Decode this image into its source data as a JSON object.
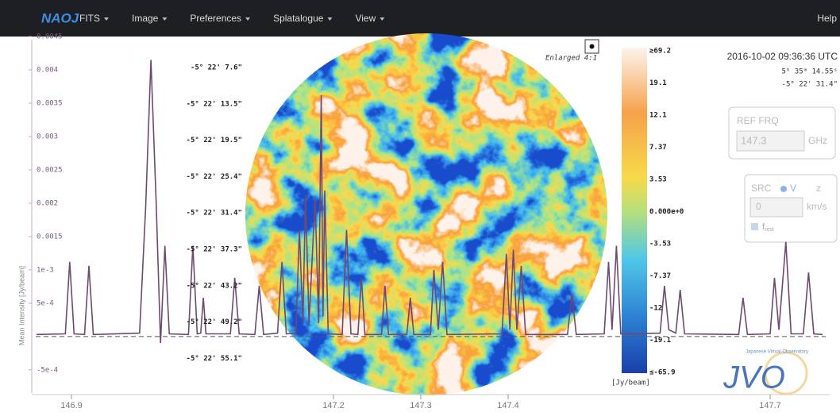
{
  "navbar": {
    "logo": "NAOJ",
    "menus": [
      "FITS",
      "Image",
      "Preferences",
      "Splatalogue",
      "View"
    ],
    "help": "Help"
  },
  "chart_data": {
    "type": "line",
    "y_label": "Mean Intensity [Jy/beam]",
    "color": "#6e4a70",
    "x": [
      146.86,
      146.893,
      146.898,
      146.903,
      146.915,
      146.92,
      146.925,
      146.978,
      146.985,
      146.991,
      146.997,
      147.002,
      147.007,
      147.012,
      147.034,
      147.039,
      147.044,
      147.048,
      147.051,
      147.054,
      147.082,
      147.087,
      147.092,
      147.11,
      147.115,
      147.12,
      147.136,
      147.141,
      147.146,
      147.157,
      147.161,
      147.165,
      147.168,
      147.172,
      147.179,
      147.183,
      147.186,
      147.188,
      147.19,
      147.194,
      147.21,
      147.215,
      147.22,
      147.228,
      147.232,
      147.236,
      147.255,
      147.259,
      147.263,
      147.284,
      147.288,
      147.292,
      147.311,
      147.315,
      147.32,
      147.325,
      147.33,
      147.393,
      147.398,
      147.402,
      147.406,
      147.41,
      147.415,
      147.42,
      147.468,
      147.473,
      147.478,
      147.51,
      147.515,
      147.519,
      147.524,
      147.529,
      147.574,
      147.579,
      147.584,
      147.592,
      147.597,
      147.602,
      147.664,
      147.669,
      147.674,
      147.7,
      147.705,
      147.71,
      147.718,
      147.724,
      147.738,
      147.744,
      147.75,
      147.76
    ],
    "values": [
      3e-05,
      4e-05,
      0.00112,
      4e-05,
      3e-05,
      0.00106,
      3e-05,
      5e-05,
      0.00195,
      0.00415,
      0.00201,
      -0.0001,
      0.00136,
      4e-05,
      3e-05,
      0.00136,
      4e-05,
      5e-05,
      0.00058,
      4e-05,
      4e-05,
      0.00088,
      4e-05,
      3e-05,
      0.00076,
      3e-05,
      5e-05,
      0.00112,
      4e-05,
      5e-05,
      0.0016,
      0.0002,
      0.00213,
      0.0002,
      0.00207,
      0.0002,
      0.00362,
      0.0003,
      0.00219,
      4e-05,
      3e-05,
      0.0016,
      4e-05,
      3e-05,
      0.00088,
      3e-05,
      3e-05,
      0.00076,
      3e-05,
      3e-05,
      0.00058,
      3e-05,
      3e-05,
      0.001,
      0.0001,
      0.00112,
      3e-05,
      4e-05,
      0.00124,
      0.0001,
      0.0013,
      0.0001,
      0.00106,
      3e-05,
      3e-05,
      0.00064,
      3e-05,
      4e-05,
      0.00112,
      0.0001,
      0.00136,
      4e-05,
      5e-05,
      0.00076,
      0.0001,
      5e-05,
      0.0007,
      4e-05,
      3e-05,
      0.00058,
      3e-05,
      4e-05,
      0.00088,
      0.0001,
      0.00142,
      4e-05,
      4e-05,
      0.00096,
      4e-05,
      3e-05
    ],
    "xlim": [
      146.8591,
      147.7636
    ],
    "ylim": [
      -0.0008,
      0.0045
    ],
    "xticks": [
      146.9,
      147.2,
      147.3,
      147.4,
      147.7
    ],
    "yticks": [
      0.0045,
      0.004,
      0.0035,
      0.003,
      0.0025,
      0.002,
      0.0015,
      {
        "value": 0.001,
        "label": "1e-3"
      },
      {
        "value": 0.0005,
        "label": "5e-4"
      },
      {
        "value": -0.0005,
        "label": "-5e-4"
      }
    ]
  },
  "image": {
    "dec_labels": [
      "-5° 22' 7.6\"",
      "-5° 22' 13.5\"",
      "-5° 22' 19.5\"",
      "-5° 22' 25.4\"",
      "-5° 22' 31.4\"",
      "-5° 22' 37.3\"",
      "-5° 22' 43.2\"",
      "-5° 22' 49.2\"",
      "-5° 22' 55.1\""
    ],
    "zoom_label": "Enlarged 4:1",
    "colorbar": {
      "labels": [
        "≥69.2",
        "19.1",
        "12.1",
        "7.37",
        "3.53",
        "0.000e+0",
        "-3.53",
        "-7.37",
        "-12",
        "-19.1",
        "≤-65.9"
      ],
      "unit": "[Jy/beam]"
    }
  },
  "info": {
    "time": "2016-10-02 09:36:36 UTC",
    "ra": "5ʰ 35ᵐ 14.55ˢ",
    "dec": "-5° 22' 31.4\""
  },
  "ref_frq": {
    "title": "REF FRQ",
    "value": "147.3",
    "unit": "GHz"
  },
  "src": {
    "title": "SRC",
    "options": [
      "V",
      "z"
    ],
    "value": "0",
    "unit": "km/s",
    "checkbox": {
      "main": "f",
      "sub": "rest"
    }
  },
  "logo": {
    "caption": "Japanese Virtual Observatory",
    "name": "JVO"
  }
}
